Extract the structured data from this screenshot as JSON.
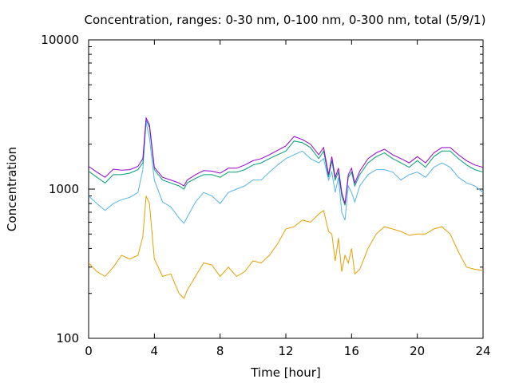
{
  "chart_data": {
    "type": "line",
    "title": "Concentration, ranges: 0-30 nm, 0-100 nm, 0-300 nm, total (5/9/1)",
    "xlabel": "Time [hour]",
    "ylabel": "Concentration",
    "xlim": [
      0,
      24
    ],
    "ylim": [
      100,
      10000
    ],
    "yscale": "log",
    "grid": false,
    "x_ticks": [
      "0",
      "4",
      "8",
      "12",
      "16",
      "20",
      "24"
    ],
    "y_ticks": [
      "100",
      "1000",
      "10000"
    ],
    "colors": {
      "range_0_30": "#e69f00",
      "range_0_100": "#56b4e9",
      "range_0_300": "#009e73",
      "total": "#9400d3"
    },
    "x": [
      0,
      0.5,
      1,
      1.5,
      2,
      2.5,
      3,
      3.3,
      3.5,
      3.7,
      4,
      4.5,
      5,
      5.5,
      5.8,
      6,
      6.5,
      7,
      7.5,
      8,
      8.5,
      9,
      9.5,
      10,
      10.5,
      11,
      11.5,
      12,
      12.5,
      13,
      13.5,
      14,
      14.3,
      14.6,
      14.8,
      15,
      15.2,
      15.4,
      15.6,
      15.8,
      16,
      16.2,
      16.5,
      17,
      17.5,
      18,
      18.5,
      19,
      19.5,
      20,
      20.5,
      21,
      21.5,
      22,
      22.5,
      23,
      23.5,
      24
    ],
    "series": [
      {
        "key": "range_0_30",
        "values": [
          320,
          280,
          260,
          300,
          360,
          340,
          360,
          480,
          900,
          800,
          340,
          260,
          270,
          200,
          185,
          210,
          260,
          320,
          310,
          260,
          300,
          260,
          280,
          330,
          320,
          360,
          430,
          540,
          560,
          620,
          600,
          680,
          720,
          520,
          500,
          330,
          470,
          280,
          360,
          320,
          400,
          270,
          290,
          400,
          500,
          560,
          540,
          520,
          490,
          500,
          500,
          540,
          560,
          500,
          380,
          300,
          290,
          285
        ]
      },
      {
        "key": "range_0_100",
        "values": [
          900,
          800,
          720,
          800,
          850,
          880,
          950,
          1350,
          2800,
          2200,
          1150,
          820,
          760,
          640,
          590,
          650,
          820,
          950,
          900,
          800,
          950,
          1000,
          1050,
          1150,
          1150,
          1300,
          1450,
          1600,
          1700,
          1800,
          1600,
          1500,
          1600,
          1150,
          1300,
          950,
          1200,
          700,
          620,
          1050,
          950,
          820,
          1050,
          1250,
          1350,
          1350,
          1300,
          1150,
          1250,
          1300,
          1200,
          1400,
          1500,
          1400,
          1200,
          1100,
          1050,
          950
        ]
      },
      {
        "key": "range_0_300",
        "values": [
          1320,
          1200,
          1100,
          1250,
          1250,
          1280,
          1350,
          1500,
          2900,
          2600,
          1350,
          1150,
          1100,
          1050,
          1000,
          1100,
          1180,
          1250,
          1250,
          1200,
          1300,
          1300,
          1350,
          1450,
          1500,
          1600,
          1700,
          1800,
          2100,
          2050,
          1900,
          1600,
          1800,
          1200,
          1550,
          1150,
          1300,
          900,
          780,
          1200,
          1300,
          1050,
          1250,
          1500,
          1650,
          1750,
          1600,
          1500,
          1400,
          1550,
          1400,
          1650,
          1800,
          1800,
          1600,
          1450,
          1350,
          1300
        ]
      },
      {
        "key": "total",
        "values": [
          1420,
          1300,
          1200,
          1360,
          1340,
          1350,
          1420,
          1600,
          3000,
          2700,
          1400,
          1200,
          1150,
          1100,
          1050,
          1150,
          1250,
          1330,
          1320,
          1280,
          1380,
          1380,
          1450,
          1550,
          1600,
          1700,
          1820,
          1950,
          2250,
          2150,
          2000,
          1700,
          1900,
          1250,
          1650,
          1200,
          1380,
          950,
          800,
          1250,
          1380,
          1100,
          1320,
          1600,
          1750,
          1850,
          1700,
          1600,
          1500,
          1650,
          1500,
          1750,
          1900,
          1900,
          1700,
          1550,
          1450,
          1400
        ]
      }
    ]
  }
}
